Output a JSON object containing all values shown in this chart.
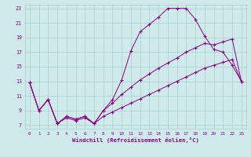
{
  "xlabel": "Windchill (Refroidissement éolien,°C)",
  "background_color": "#ceeaea",
  "line_color": "#880088",
  "xlim": [
    -0.5,
    23.5
  ],
  "ylim": [
    6.5,
    23.5
  ],
  "yticks": [
    7,
    9,
    11,
    13,
    15,
    17,
    19,
    21,
    23
  ],
  "xticks": [
    0,
    1,
    2,
    3,
    4,
    5,
    6,
    7,
    8,
    9,
    10,
    11,
    12,
    13,
    14,
    15,
    16,
    17,
    18,
    19,
    20,
    21,
    22,
    23
  ],
  "line1_x": [
    0,
    1,
    2,
    3,
    4,
    5,
    6,
    7,
    8,
    9,
    10,
    11,
    12,
    13,
    14,
    15,
    16,
    17,
    18,
    19,
    20,
    21,
    22,
    23
  ],
  "line1_y": [
    12.8,
    9.0,
    10.5,
    7.2,
    8.2,
    7.8,
    8.2,
    7.2,
    9.0,
    10.5,
    13.2,
    17.2,
    19.8,
    20.8,
    21.8,
    23.0,
    23.0,
    23.0,
    21.5,
    19.2,
    17.4,
    17.0,
    15.2,
    13.0
  ],
  "line2_x": [
    0,
    1,
    2,
    3,
    4,
    5,
    6,
    7,
    8,
    9,
    10,
    11,
    12,
    13,
    14,
    15,
    16,
    17,
    18,
    19,
    20,
    21,
    22,
    23
  ],
  "line2_y": [
    12.8,
    9.0,
    10.5,
    7.2,
    8.2,
    7.8,
    8.2,
    7.2,
    9.0,
    10.0,
    11.2,
    12.2,
    13.2,
    14.0,
    14.8,
    15.5,
    16.2,
    17.0,
    17.6,
    18.2,
    18.0,
    18.4,
    18.8,
    13.0
  ],
  "line3_x": [
    0,
    1,
    2,
    3,
    4,
    5,
    6,
    7,
    8,
    9,
    10,
    11,
    12,
    13,
    14,
    15,
    16,
    17,
    18,
    19,
    20,
    21,
    22,
    23
  ],
  "line3_y": [
    12.8,
    9.0,
    10.5,
    7.2,
    8.0,
    7.6,
    8.0,
    7.2,
    8.2,
    8.8,
    9.4,
    10.0,
    10.6,
    11.2,
    11.8,
    12.4,
    13.0,
    13.6,
    14.2,
    14.8,
    15.2,
    15.6,
    16.0,
    13.0
  ]
}
